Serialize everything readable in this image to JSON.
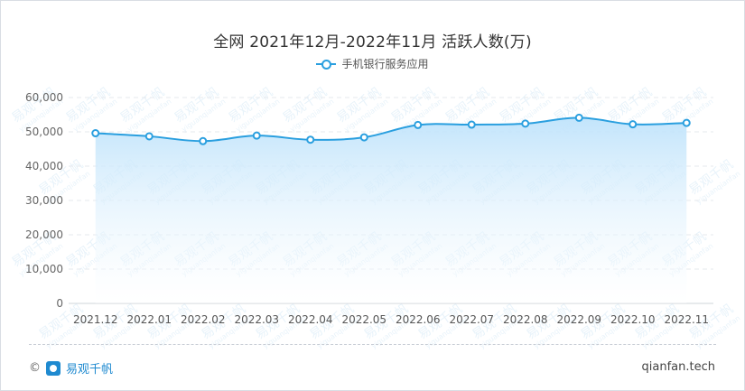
{
  "header": {
    "title": "全网 2021年12月-2022年11月 活跃人数(万)"
  },
  "legend": {
    "label": "手机银行服务应用"
  },
  "footer": {
    "copyright_symbol": "©",
    "brand": "易观千帆",
    "site": "qianfan.tech"
  },
  "watermark": {
    "cn": "易观千帆",
    "en": "yiguanqianfan"
  },
  "colors": {
    "line": "#2a9fdf",
    "area_top": "#bfe3fb",
    "grid": "#e6e9ee"
  },
  "chart_data": {
    "type": "area",
    "title": "全网 2021年12月-2022年11月 活跃人数(万)",
    "xlabel": "",
    "ylabel": "",
    "ylim": [
      0,
      60000
    ],
    "y_ticks": [
      "0",
      "10,000",
      "20,000",
      "30,000",
      "40,000",
      "50,000",
      "60,000"
    ],
    "y_tick_values": [
      0,
      10000,
      20000,
      30000,
      40000,
      50000,
      60000
    ],
    "grid": true,
    "legend_position": "top-center",
    "categories": [
      "2021.12",
      "2022.01",
      "2022.02",
      "2022.03",
      "2022.04",
      "2022.05",
      "2022.06",
      "2022.07",
      "2022.08",
      "2022.09",
      "2022.10",
      "2022.11"
    ],
    "series": [
      {
        "name": "手机银行服务应用",
        "values": [
          49600,
          48700,
          47300,
          48900,
          47700,
          48400,
          52000,
          52100,
          52400,
          54100,
          52200,
          52600
        ]
      }
    ]
  }
}
